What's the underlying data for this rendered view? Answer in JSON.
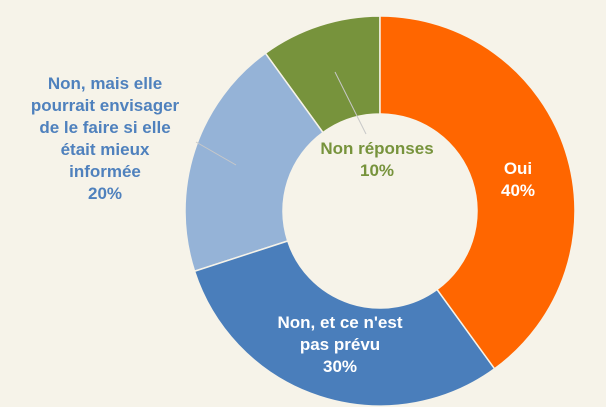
{
  "chart_data": {
    "type": "donut",
    "categories": [
      "Oui",
      "Non, et ce n'est pas prévu",
      "Non, mais elle pourrait envisager de le faire si elle était mieux informée",
      "Non réponses"
    ],
    "values": [
      40,
      30,
      20,
      10
    ],
    "value_labels": [
      "40%",
      "30%",
      "20%",
      "10%"
    ],
    "colors": [
      "#ff6600",
      "#4a7ebb",
      "#95b3d7",
      "#77933c"
    ]
  }
}
